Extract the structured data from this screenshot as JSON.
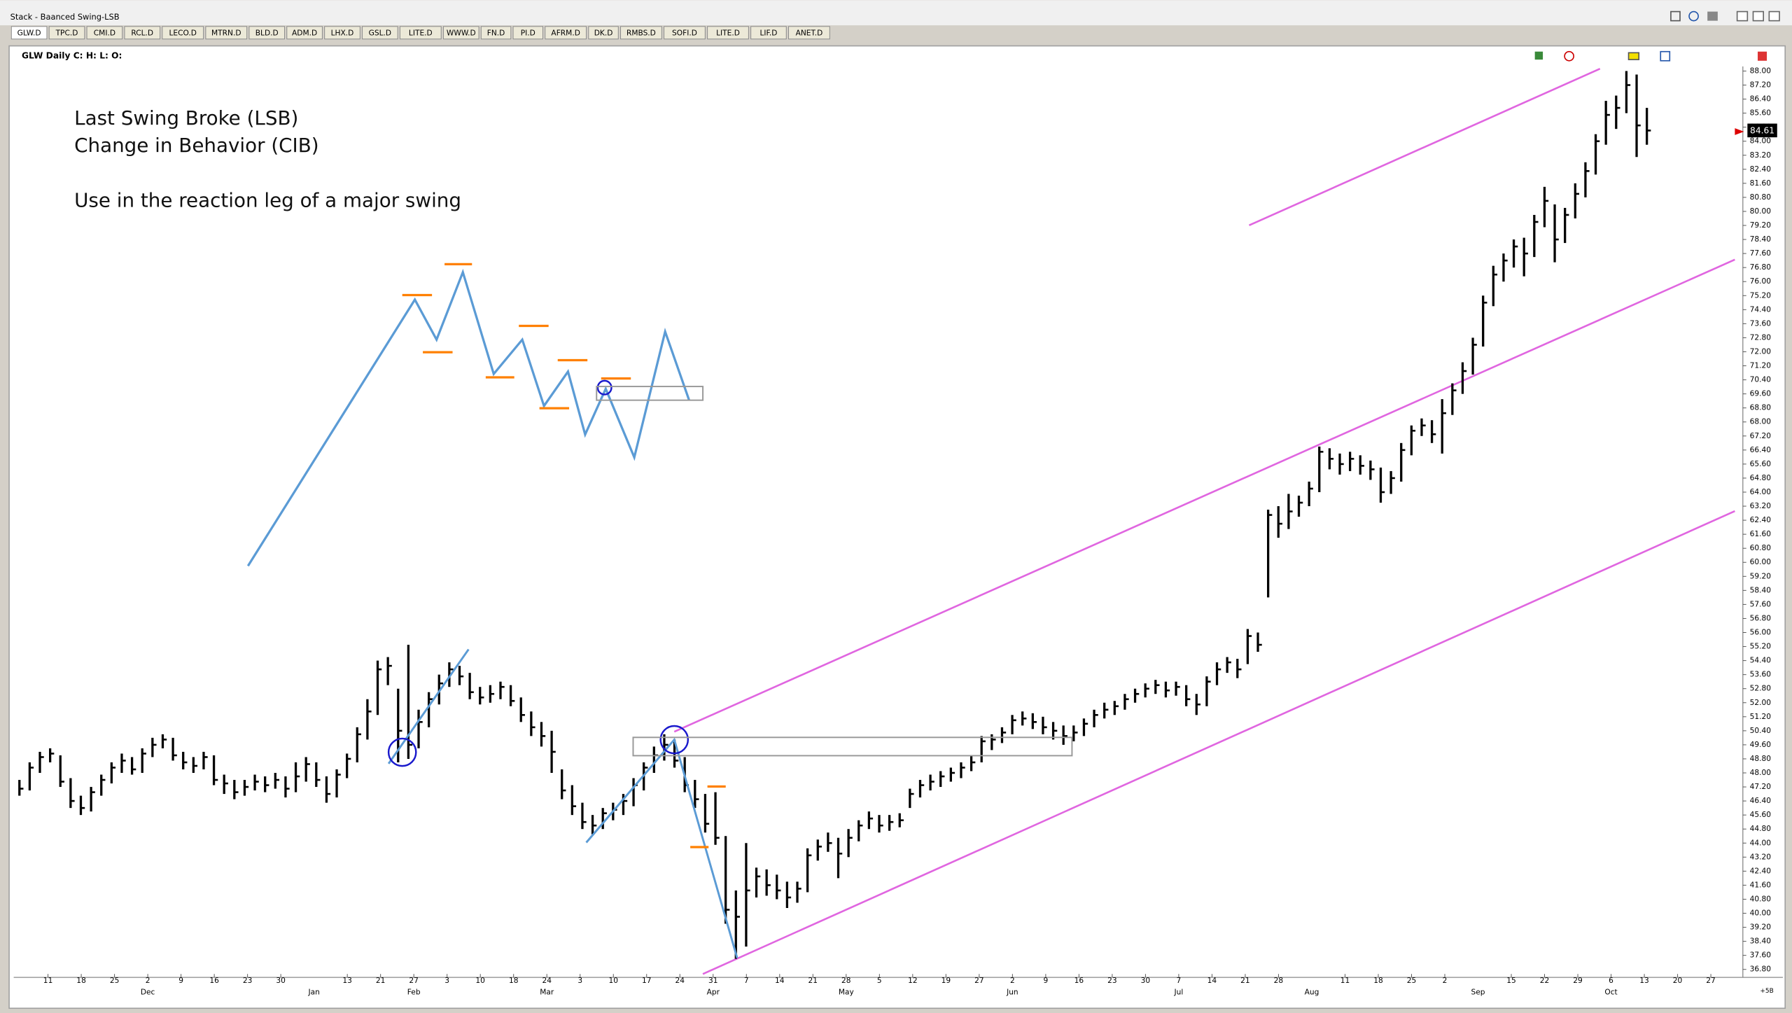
{
  "window": {
    "title": "Stack - Baanced Swing-LSB"
  },
  "tabs": [
    "GLW.D",
    "TPC.D",
    "CMI.D",
    "RCL.D",
    "LECO.D",
    "MTRN.D",
    "BLD.D",
    "ADM.D",
    "LHX.D",
    "GSL.D",
    "LITE.D",
    "WWW.D",
    "FN.D",
    "PI.D",
    "AFRM.D",
    "DK.D",
    "RMBS.D",
    "SOFI.D",
    "LITE.D",
    "LIF.D",
    "ANET.D"
  ],
  "chart_data": {
    "type": "ohlc",
    "title": "GLW Daily C: H: L: O:",
    "annotations": [
      "Last Swing Broke (LSB)",
      "Change in Behavior  (CIB)",
      "Use in the reaction leg of a major swing"
    ],
    "bar_color": "#000000",
    "high": [
      47.6,
      48.6,
      49.2,
      49.4,
      49.0,
      47.7,
      46.7,
      47.2,
      47.9,
      48.6,
      49.1,
      48.9,
      49.4,
      50.0,
      50.2,
      50.0,
      49.2,
      48.9,
      49.2,
      49.0,
      47.9,
      47.6,
      47.6,
      47.9,
      47.8,
      48.0,
      47.8,
      48.6,
      48.9,
      48.6,
      47.8,
      48.2,
      49.1,
      50.6,
      52.2,
      54.4,
      54.6,
      52.8,
      55.3,
      51.6,
      52.6,
      53.6,
      54.3,
      54.1,
      53.7,
      52.9,
      53.0,
      53.2,
      53.0,
      52.3,
      51.5,
      50.9,
      50.4,
      48.2,
      47.3,
      46.3,
      45.6,
      46.0,
      46.3,
      46.8,
      47.7,
      48.6,
      49.5,
      50.2,
      49.9,
      48.9,
      47.6,
      46.8,
      46.9,
      44.4,
      41.3,
      44.0,
      42.6,
      42.5,
      42.2,
      41.8,
      41.8,
      43.7,
      44.2,
      44.6,
      44.3,
      44.8,
      45.3,
      45.8,
      45.6,
      45.6,
      45.7,
      47.1,
      47.6,
      47.9,
      48.1,
      48.3,
      48.6,
      49.0,
      50.1,
      50.2,
      50.6,
      51.3,
      51.5,
      51.4,
      51.2,
      50.9,
      50.7,
      50.7,
      51.1,
      51.6,
      52.0,
      52.1,
      52.5,
      52.8,
      53.1,
      53.3,
      53.2,
      53.2,
      53.0,
      52.5,
      53.5,
      54.3,
      54.6,
      54.5,
      56.2,
      56.0,
      63.0,
      63.2,
      63.9,
      63.8,
      64.6,
      66.6,
      66.5,
      66.2,
      66.3,
      66.1,
      65.8,
      65.4,
      65.2,
      66.8,
      67.8,
      68.2,
      68.1,
      69.3,
      70.2,
      71.4,
      72.8,
      75.2,
      76.9,
      77.6,
      78.4,
      78.5,
      79.8,
      81.4,
      80.4,
      80.2,
      81.6,
      82.8,
      84.4,
      86.3,
      86.6,
      88.0,
      87.8,
      85.9
    ],
    "low": [
      46.7,
      47.0,
      48.0,
      48.6,
      47.2,
      46.0,
      45.6,
      45.8,
      46.7,
      47.4,
      48.0,
      47.9,
      48.0,
      48.9,
      49.4,
      48.7,
      48.2,
      48.0,
      48.2,
      47.3,
      46.8,
      46.5,
      46.7,
      47.0,
      46.9,
      47.1,
      46.6,
      46.9,
      47.5,
      47.2,
      46.3,
      46.6,
      47.7,
      48.6,
      49.9,
      51.3,
      53.0,
      48.6,
      48.8,
      49.4,
      50.6,
      51.9,
      52.9,
      53.0,
      52.2,
      51.9,
      52.0,
      52.2,
      51.8,
      50.9,
      50.1,
      49.5,
      48.0,
      46.5,
      45.6,
      44.8,
      44.5,
      44.8,
      45.3,
      45.6,
      46.1,
      47.0,
      48.0,
      48.7,
      48.3,
      46.9,
      46.0,
      44.6,
      43.9,
      39.4,
      37.4,
      38.1,
      40.9,
      41.0,
      40.8,
      40.3,
      40.6,
      41.2,
      43.0,
      43.5,
      42.0,
      43.2,
      44.1,
      44.8,
      44.6,
      44.7,
      44.9,
      46.0,
      46.6,
      47.0,
      47.2,
      47.5,
      47.7,
      48.1,
      48.6,
      49.3,
      49.7,
      50.2,
      50.7,
      50.5,
      50.2,
      49.9,
      49.6,
      49.8,
      50.1,
      50.6,
      51.1,
      51.3,
      51.6,
      52.0,
      52.3,
      52.5,
      52.3,
      52.4,
      51.8,
      51.3,
      51.8,
      53.0,
      53.7,
      53.4,
      54.2,
      54.9,
      58.0,
      61.4,
      61.9,
      62.6,
      63.2,
      64.0,
      65.3,
      65.0,
      65.2,
      65.0,
      64.7,
      63.4,
      63.9,
      64.6,
      66.1,
      67.2,
      66.8,
      66.2,
      68.4,
      69.6,
      70.7,
      72.3,
      74.6,
      76.0,
      76.8,
      76.3,
      77.4,
      79.1,
      77.1,
      78.2,
      79.6,
      80.8,
      82.1,
      83.8,
      84.7,
      85.6,
      83.1,
      83.8
    ],
    "close": [
      47.1,
      48.3,
      48.9,
      49.1,
      47.5,
      46.4,
      46.0,
      46.9,
      47.6,
      48.3,
      48.7,
      48.2,
      49.1,
      49.6,
      49.9,
      49.0,
      48.6,
      48.4,
      48.9,
      47.6,
      47.4,
      46.9,
      47.2,
      47.5,
      47.3,
      47.6,
      47.1,
      47.8,
      48.5,
      47.6,
      46.8,
      47.9,
      48.8,
      50.2,
      51.5,
      53.9,
      54.1,
      50.4,
      49.6,
      50.9,
      52.2,
      53.1,
      53.9,
      53.5,
      52.6,
      52.3,
      52.5,
      52.9,
      52.1,
      51.3,
      50.6,
      50.1,
      49.2,
      47.0,
      46.1,
      45.2,
      45.0,
      45.7,
      45.9,
      46.4,
      47.3,
      48.3,
      49.0,
      49.6,
      48.7,
      47.3,
      46.5,
      45.1,
      44.3,
      40.2,
      39.8,
      41.3,
      42.1,
      41.6,
      41.3,
      40.9,
      41.4,
      43.3,
      43.8,
      44.0,
      43.4,
      44.3,
      45.0,
      45.4,
      45.0,
      45.2,
      45.3,
      46.8,
      47.3,
      47.5,
      47.8,
      48.0,
      48.3,
      48.6,
      49.8,
      49.9,
      50.3,
      51.0,
      51.1,
      50.9,
      50.6,
      50.4,
      50.1,
      50.3,
      50.8,
      51.3,
      51.6,
      51.8,
      52.2,
      52.5,
      52.8,
      53.0,
      52.7,
      52.9,
      52.2,
      51.9,
      53.2,
      53.9,
      54.3,
      53.9,
      55.8,
      55.3,
      62.7,
      62.2,
      62.9,
      63.4,
      64.2,
      66.3,
      65.9,
      65.6,
      65.9,
      65.5,
      65.3,
      64.0,
      64.8,
      66.4,
      67.5,
      67.8,
      67.3,
      68.5,
      69.8,
      70.9,
      72.4,
      74.8,
      76.4,
      77.2,
      78.0,
      77.6,
      79.4,
      80.6,
      78.4,
      79.8,
      81.0,
      82.3,
      84.0,
      85.5,
      85.9,
      87.2,
      84.9,
      84.61
    ],
    "ylim": [
      36.8,
      88
    ],
    "yticks": [
      {
        "value": 88,
        "label": "88.00"
      },
      {
        "value": 87.2,
        "label": "87.20"
      },
      {
        "value": 86.4,
        "label": "86.40"
      },
      {
        "value": 85.6,
        "label": "85.60"
      },
      {
        "value": 84.8,
        "label": "84.80"
      },
      {
        "value": 84,
        "label": "84.00"
      },
      {
        "value": 83.2,
        "label": "83.20"
      },
      {
        "value": 82.4,
        "label": "82.40"
      },
      {
        "value": 81.6,
        "label": "81.60"
      },
      {
        "value": 80.8,
        "label": "80.80"
      },
      {
        "value": 80,
        "label": "80.00"
      },
      {
        "value": 79.2,
        "label": "79.20"
      },
      {
        "value": 78.4,
        "label": "78.40"
      },
      {
        "value": 77.6,
        "label": "77.60"
      },
      {
        "value": 76.8,
        "label": "76.80"
      },
      {
        "value": 76,
        "label": "76.00"
      },
      {
        "value": 75.2,
        "label": "75.20"
      },
      {
        "value": 74.4,
        "label": "74.40"
      },
      {
        "value": 73.6,
        "label": "73.60"
      },
      {
        "value": 72.8,
        "label": "72.80"
      },
      {
        "value": 72,
        "label": "72.00"
      },
      {
        "value": 71.2,
        "label": "71.20"
      },
      {
        "value": 70.4,
        "label": "70.40"
      },
      {
        "value": 69.6,
        "label": "69.60"
      },
      {
        "value": 68.8,
        "label": "68.80"
      },
      {
        "value": 68,
        "label": "68.00"
      },
      {
        "value": 67.2,
        "label": "67.20"
      },
      {
        "value": 66.4,
        "label": "66.40"
      },
      {
        "value": 65.6,
        "label": "65.60"
      },
      {
        "value": 64.8,
        "label": "64.80"
      },
      {
        "value": 64,
        "label": "64.00"
      },
      {
        "value": 63.2,
        "label": "63.20"
      },
      {
        "value": 62.4,
        "label": "62.40"
      },
      {
        "value": 61.6,
        "label": "61.60"
      },
      {
        "value": 60.8,
        "label": "60.80"
      },
      {
        "value": 60,
        "label": "60.00"
      },
      {
        "value": 59.2,
        "label": "59.20"
      },
      {
        "value": 58.4,
        "label": "58.40"
      },
      {
        "value": 57.6,
        "label": "57.60"
      },
      {
        "value": 56.8,
        "label": "56.80"
      },
      {
        "value": 56,
        "label": "56.00"
      },
      {
        "value": 55.2,
        "label": "55.20"
      },
      {
        "value": 54.4,
        "label": "54.40"
      },
      {
        "value": 53.6,
        "label": "53.60"
      },
      {
        "value": 52.8,
        "label": "52.80"
      },
      {
        "value": 52,
        "label": "52.00"
      },
      {
        "value": 51.2,
        "label": "51.20"
      },
      {
        "value": 50.4,
        "label": "50.40"
      },
      {
        "value": 49.6,
        "label": "49.60"
      },
      {
        "value": 48.8,
        "label": "48.80"
      },
      {
        "value": 48,
        "label": "48.00"
      },
      {
        "value": 47.2,
        "label": "47.20"
      },
      {
        "value": 46.4,
        "label": "46.40"
      },
      {
        "value": 45.6,
        "label": "45.60"
      },
      {
        "value": 44.8,
        "label": "44.80"
      },
      {
        "value": 44,
        "label": "44.00"
      },
      {
        "value": 43.2,
        "label": "43.20"
      },
      {
        "value": 42.4,
        "label": "42.40"
      },
      {
        "value": 41.6,
        "label": "41.60"
      },
      {
        "value": 40.8,
        "label": "40.80"
      },
      {
        "value": 40,
        "label": "40.00"
      },
      {
        "value": 39.2,
        "label": "39.20"
      },
      {
        "value": 38.4,
        "label": "38.40"
      },
      {
        "value": 37.6,
        "label": "37.60"
      },
      {
        "value": 36.8,
        "label": "36.80"
      }
    ],
    "x_tick_labels": [
      "11",
      "18",
      "25",
      "2",
      "9",
      "16",
      "23",
      "30",
      null,
      "13",
      "21",
      "27",
      "3",
      "10",
      "18",
      "24",
      "3",
      "10",
      "17",
      "24",
      "31",
      "7",
      "14",
      "21",
      "28",
      "5",
      "12",
      "19",
      "27",
      "2",
      "9",
      "16",
      "23",
      "30",
      "7",
      "14",
      "21",
      "28",
      null,
      "11",
      "18",
      "25",
      "2",
      null,
      "15",
      "22",
      "29",
      "6",
      "13",
      "20",
      "27"
    ],
    "month_labels": [
      null,
      null,
      null,
      "Dec",
      null,
      null,
      null,
      null,
      "Jan",
      null,
      null,
      "Feb",
      null,
      null,
      null,
      "Mar",
      null,
      null,
      null,
      null,
      "Apr",
      null,
      null,
      null,
      "May",
      null,
      null,
      null,
      null,
      "Jun",
      null,
      null,
      null,
      null,
      "Jul",
      null,
      null,
      null,
      "Aug",
      null,
      null,
      null,
      null,
      "Sep",
      null,
      null,
      null,
      "Oct",
      null,
      null,
      null
    ],
    "axis_footer": "+5B"
  }
}
